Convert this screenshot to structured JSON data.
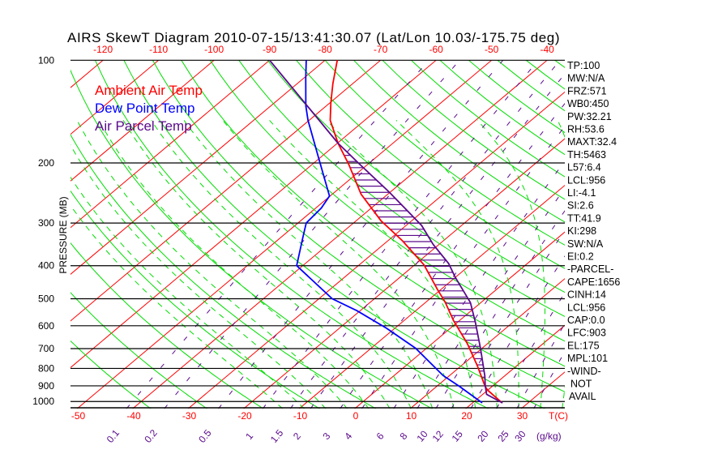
{
  "chart_data": {
    "type": "line",
    "subtype": "skew-t log-p",
    "title": "AIRS SkewT Diagram 2010-07-15/13:41:30.07 (Lat/Lon 10.03/-175.75 deg)",
    "ylabel": "PRESSURE (MB)",
    "xlabel": "T(C)",
    "mixing_ratio_label": "(g/kg)",
    "ylim": [
      1050,
      100
    ],
    "pressure_ticks": [
      "100",
      "200",
      "300",
      "400",
      "500",
      "600",
      "700",
      "800",
      "900",
      "1000"
    ],
    "pressure_values": [
      100,
      200,
      300,
      400,
      500,
      600,
      700,
      800,
      900,
      1000
    ],
    "top_temp_ticks": [
      "-120",
      "-110",
      "-100",
      "-90",
      "-80",
      "-70",
      "-60",
      "-50",
      "-40"
    ],
    "top_temp_values": [
      -120,
      -110,
      -100,
      -90,
      -80,
      -70,
      -60,
      -50,
      -40
    ],
    "bottom_temp_ticks": [
      "-50",
      "-40",
      "-30",
      "-20",
      "-10",
      "0",
      "10",
      "20",
      "30"
    ],
    "bottom_temp_values": [
      -50,
      -40,
      -30,
      -20,
      -10,
      0,
      10,
      20,
      30
    ],
    "mixing_ratio_ticks": [
      "0.1",
      "0.2",
      "0.5",
      "1",
      "1.5",
      "2",
      "3",
      "4",
      "6",
      "8",
      "10",
      "12",
      "15",
      "20",
      "25",
      "30"
    ],
    "mixing_ratio_values": [
      0.1,
      0.2,
      0.5,
      1,
      1.5,
      2,
      3,
      4,
      6,
      8,
      10,
      12,
      15,
      20,
      25,
      30
    ],
    "legend": [
      {
        "label": "Ambient Air Temp",
        "color": "#ff0000"
      },
      {
        "label": "Dew Point Temp",
        "color": "#0000ff"
      },
      {
        "label": "Air Parcel Temp",
        "color": "#5a0a8c"
      }
    ],
    "legend_placement": "top-left",
    "series": [
      {
        "name": "Ambient Air Temp",
        "color": "#ff0000",
        "points": [
          [
            100,
            -77.8
          ],
          [
            117,
            -73.6
          ],
          [
            133,
            -69.9
          ],
          [
            150,
            -66.2
          ],
          [
            175,
            -59.9
          ],
          [
            202,
            -53.4
          ],
          [
            247,
            -44.8
          ],
          [
            295,
            -35.6
          ],
          [
            338,
            -27.4
          ],
          [
            398,
            -18.3
          ],
          [
            469,
            -10.7
          ],
          [
            513,
            -6.4
          ],
          [
            579,
            -1.1
          ],
          [
            676,
            6.3
          ],
          [
            784,
            12.8
          ],
          [
            903,
            18.7
          ],
          [
            928,
            20.1
          ],
          [
            1009,
            25.3
          ]
        ]
      },
      {
        "name": "Dew Point Temp",
        "color": "#0000ff",
        "points": [
          [
            100,
            -83.4
          ],
          [
            113,
            -79.6
          ],
          [
            136,
            -73.7
          ],
          [
            150,
            -70.2
          ],
          [
            192,
            -60.5
          ],
          [
            250,
            -50.1
          ],
          [
            271,
            -49.0
          ],
          [
            300,
            -48.5
          ],
          [
            331,
            -46.0
          ],
          [
            400,
            -41.1
          ],
          [
            500,
            -27.6
          ],
          [
            542,
            -20.6
          ],
          [
            610,
            -11.5
          ],
          [
            698,
            -2.0
          ],
          [
            839,
            8.8
          ],
          [
            903,
            14.1
          ],
          [
            1009,
            21.7
          ]
        ]
      },
      {
        "name": "Air Parcel Temp",
        "color": "#5a0a8c",
        "points": [
          [
            100,
            -90.0
          ],
          [
            175,
            -59.9
          ],
          [
            201,
            -51.7
          ],
          [
            243,
            -40.3
          ],
          [
            305,
            -27.2
          ],
          [
            347,
            -21.0
          ],
          [
            394,
            -14.2
          ],
          [
            432,
            -10.1
          ],
          [
            513,
            -1.9
          ],
          [
            584,
            3.1
          ],
          [
            700,
            9.8
          ],
          [
            841,
            16.4
          ],
          [
            899,
            18.6
          ],
          [
            953,
            20.7
          ],
          [
            1010,
            25.4
          ]
        ]
      }
    ],
    "colors": {
      "isotherm": "#ff0000",
      "dry_adiabat": "#00dd00",
      "moist_adiabat": "#00dd00",
      "mixing_ratio": "#5a0a8c",
      "pressure_line": "#000000"
    }
  },
  "indices": [
    "TP:100",
    "MW:N/A",
    "FRZ:571",
    "WB0:450",
    "PW:32.21",
    "RH:53.6",
    "MAXT:32.4",
    "TH:5463",
    "L57:6.4",
    "LCL:956",
    "LI:-4.1",
    "SI:2.6",
    "TT:41.9",
    "KI:298",
    "SW:N/A",
    "EI:0.2",
    "-PARCEL-",
    "CAPE:1656",
    "CINH:14",
    "LCL:956",
    "CAP:0.0",
    "LFC:903",
    "EL:175",
    "MPL:101",
    "-WIND-",
    " NOT",
    "AVAIL"
  ]
}
